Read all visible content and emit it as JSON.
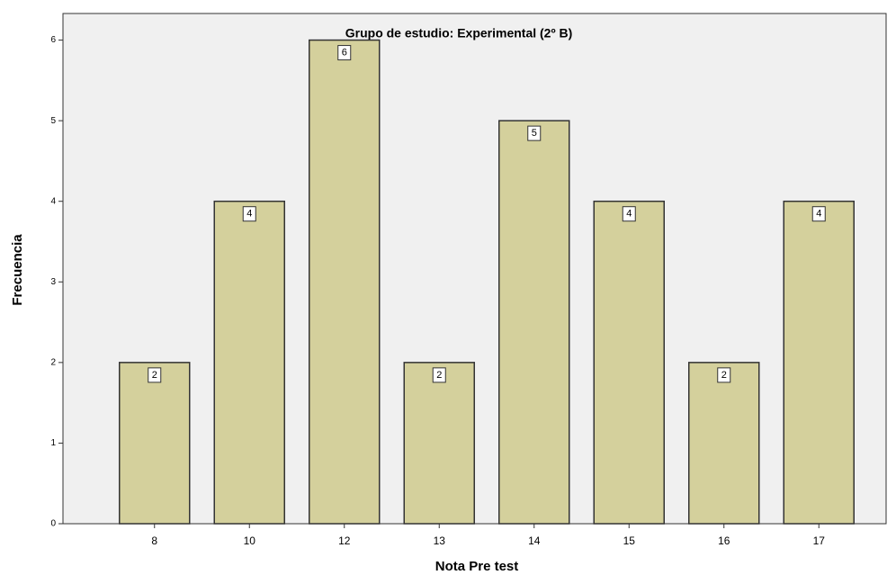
{
  "chart_data": {
    "type": "bar",
    "title": "Grupo de estudio: Experimental (2º B)",
    "x_label": "Nota Pre test",
    "y_label": "Frecuencia",
    "categories": [
      "8",
      "10",
      "12",
      "13",
      "14",
      "15",
      "16",
      "17"
    ],
    "values": [
      2,
      4,
      6,
      2,
      5,
      4,
      2,
      4
    ],
    "color": "#d4d09c",
    "ylim": [
      0,
      6.33
    ],
    "yticks": [
      0,
      1,
      2,
      3,
      4,
      5,
      6
    ],
    "grid": false
  }
}
